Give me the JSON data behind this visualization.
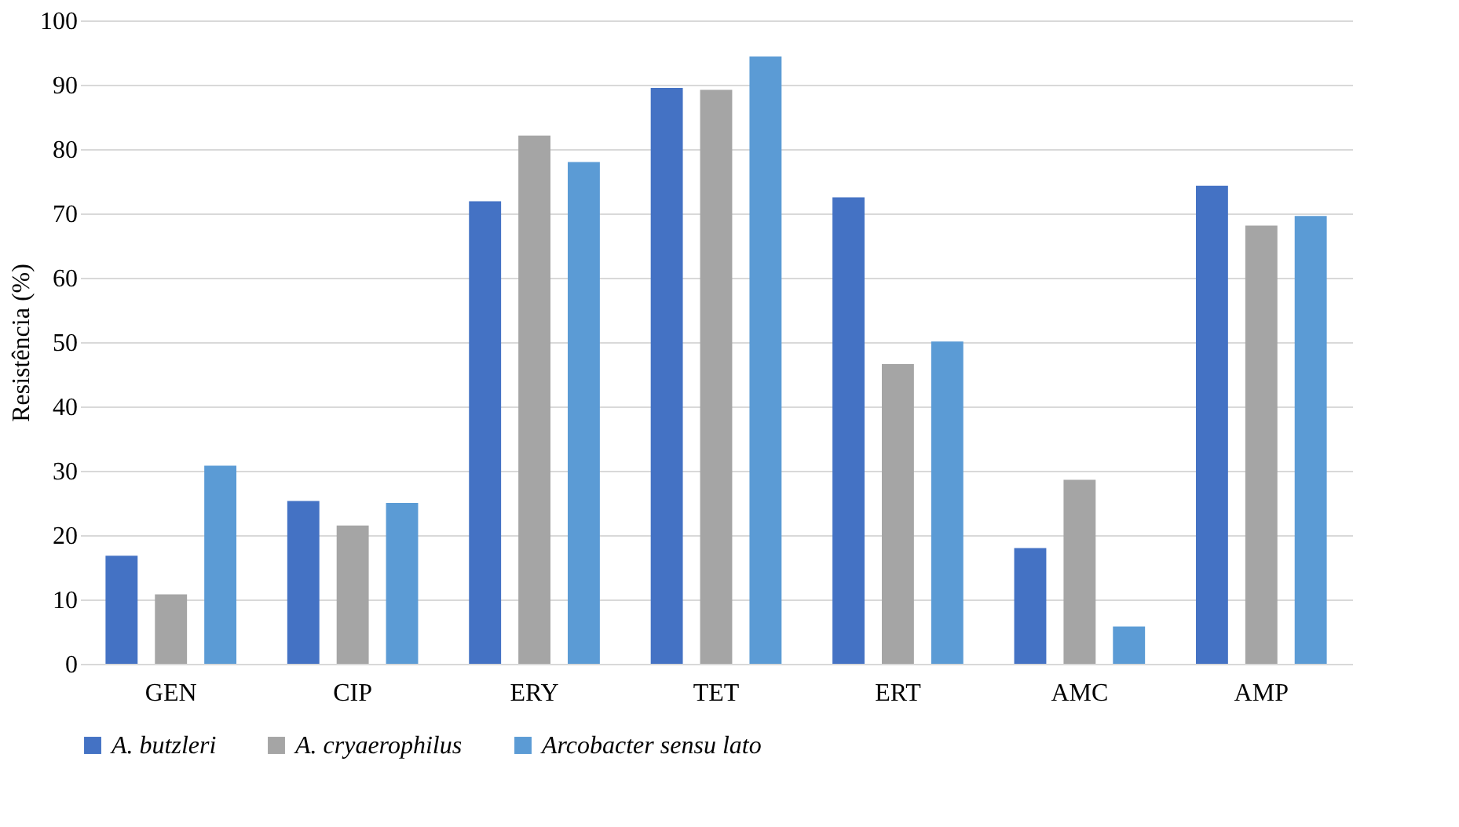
{
  "chart_data": {
    "type": "bar",
    "ylabel": "Resistência (%)",
    "categories": [
      "GEN",
      "CIP",
      "ERY",
      "TET",
      "ERT",
      "AMC",
      "AMP"
    ],
    "series": [
      {
        "name": "A. butzleri",
        "color": "#4472c4",
        "values": [
          16.8,
          25.3,
          71.9,
          89.5,
          72.5,
          18,
          74.3
        ]
      },
      {
        "name": "A. cryaerophilus",
        "color": "#a5a5a5",
        "values": [
          10.8,
          21.5,
          82.1,
          89.2,
          46.6,
          28.6,
          68.1
        ]
      },
      {
        "name": "Arcobacter sensu lato",
        "color": "#5b9bd5",
        "values": [
          30.8,
          25,
          78,
          94.4,
          50.1,
          5.8,
          69.6
        ]
      }
    ],
    "ylim": [
      0,
      100
    ],
    "yticks": [
      0,
      10,
      20,
      30,
      40,
      50,
      60,
      70,
      80,
      90,
      100
    ],
    "grid": "y",
    "legend": "bottom"
  }
}
